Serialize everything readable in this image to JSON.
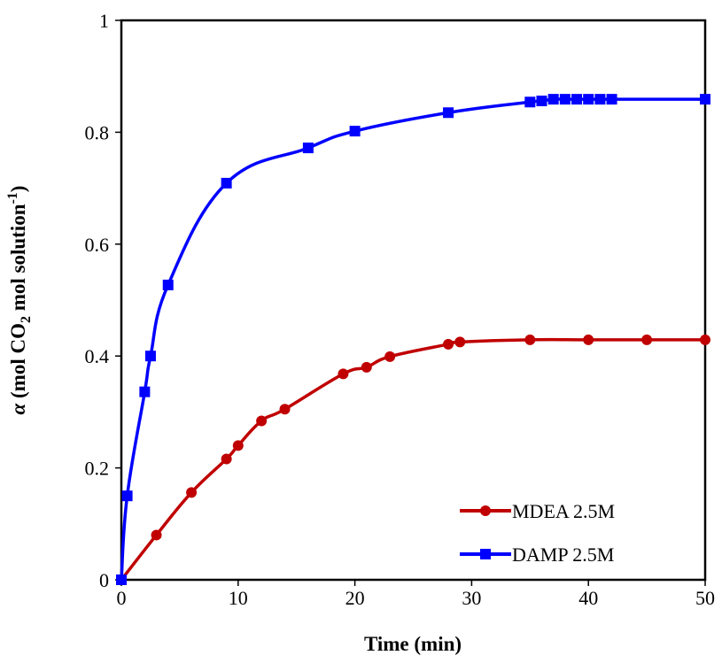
{
  "chart_data": {
    "type": "line",
    "title": "",
    "xlabel": "Time (min)",
    "ylabel": {
      "alpha": "α",
      "text1": " (mol CO",
      "sub": "2",
      "text2": "  mol solution",
      "sup": "-1",
      "text3": ")"
    },
    "xlim": [
      0,
      50
    ],
    "ylim": [
      0,
      1
    ],
    "x_ticks": [
      0,
      10,
      20,
      30,
      40,
      50
    ],
    "y_ticks": [
      0,
      0.2,
      0.4,
      0.6,
      0.8,
      1
    ],
    "x_tick_labels": [
      "0",
      "10",
      "20",
      "30",
      "40",
      "50"
    ],
    "y_tick_labels": [
      "0",
      "0.2",
      "0.4",
      "0.6",
      "0.8",
      "1"
    ],
    "grid": false,
    "legend_position": "bottom-right",
    "series": [
      {
        "name": "MDEA 2.5M",
        "color": "#c00000",
        "marker": "circle",
        "x": [
          0,
          3,
          6,
          9,
          10,
          12,
          14,
          19,
          21,
          23,
          28,
          29,
          35,
          40,
          45,
          50
        ],
        "y": [
          0,
          0.08,
          0.156,
          0.216,
          0.24,
          0.284,
          0.305,
          0.368,
          0.38,
          0.399,
          0.421,
          0.425,
          0.429,
          0.429,
          0.429,
          0.429
        ]
      },
      {
        "name": "DAMP 2.5M",
        "color": "#0000ff",
        "marker": "square",
        "x": [
          0,
          0.5,
          2,
          2.5,
          4,
          9,
          16,
          20,
          28,
          35,
          36,
          37,
          38,
          39,
          40,
          41,
          42,
          50
        ],
        "y": [
          0,
          0.15,
          0.336,
          0.4,
          0.527,
          0.709,
          0.772,
          0.802,
          0.835,
          0.854,
          0.856,
          0.859,
          0.859,
          0.859,
          0.859,
          0.859,
          0.859,
          0.859
        ]
      }
    ]
  }
}
